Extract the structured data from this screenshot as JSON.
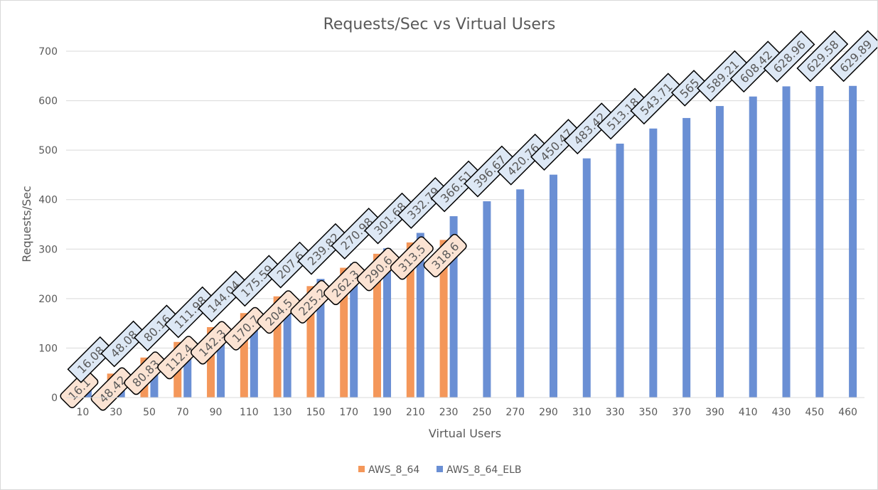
{
  "chart_data": {
    "type": "bar",
    "title": "Requests/Sec vs Virtual Users",
    "xlabel": "Virtual Users",
    "ylabel": "Requests/Sec",
    "ylim": [
      0,
      700
    ],
    "yticks": [
      0,
      100,
      200,
      300,
      400,
      500,
      600,
      700
    ],
    "grid": true,
    "legend_position": "bottom",
    "categories": [
      "10",
      "30",
      "50",
      "70",
      "90",
      "110",
      "130",
      "150",
      "170",
      "190",
      "210",
      "230",
      "250",
      "270",
      "290",
      "310",
      "330",
      "350",
      "370",
      "390",
      "410",
      "430",
      "450",
      "460"
    ],
    "series": [
      {
        "name": "AWS_8_64",
        "color": "#f4975a",
        "label_fill": "#fbe3d3",
        "values": [
          16.1,
          48.42,
          80.83,
          112.4,
          142.3,
          170.7,
          204.5,
          225.2,
          262.3,
          290.6,
          313.5,
          318.6,
          null,
          null,
          null,
          null,
          null,
          null,
          null,
          null,
          null,
          null,
          null,
          null
        ]
      },
      {
        "name": "AWS_8_64_ELB",
        "color": "#6a8fd4",
        "label_fill": "#dde8f5",
        "values": [
          16.08,
          48.08,
          80.16,
          111.98,
          144.04,
          175.59,
          207.6,
          239.82,
          270.98,
          301.68,
          332.79,
          366.51,
          396.67,
          420.76,
          450.47,
          483.42,
          513.18,
          543.71,
          565,
          589.21,
          608.42,
          628.96,
          629.58,
          629.89
        ]
      }
    ]
  }
}
